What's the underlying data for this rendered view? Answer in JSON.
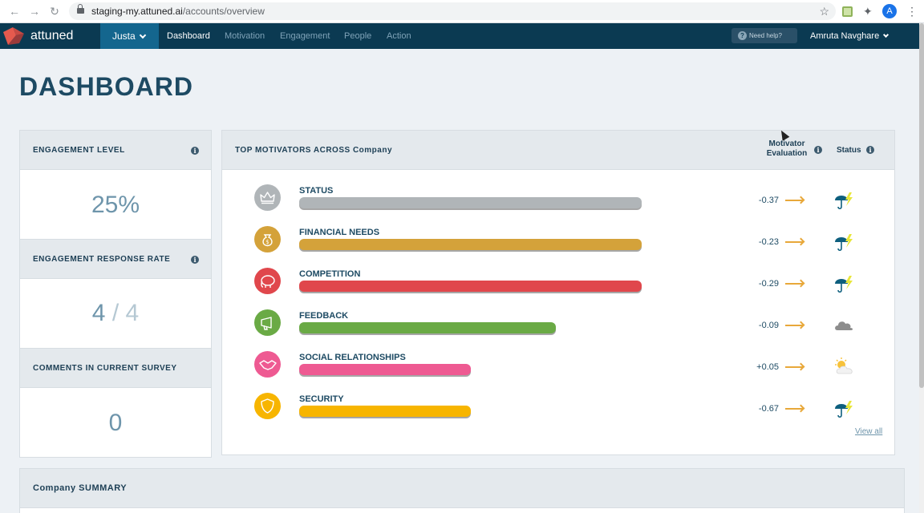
{
  "browser": {
    "url_host": "staging-my.attuned.ai",
    "url_path": "/accounts/overview",
    "avatar_letter": "A"
  },
  "nav": {
    "brand": "attuned",
    "account": "Justa",
    "links": [
      "Dashboard",
      "Motivation",
      "Engagement",
      "People",
      "Action"
    ],
    "active": "Dashboard",
    "help": "Need help?",
    "user": "Amruta Navghare"
  },
  "page": {
    "title": "DASHBOARD"
  },
  "cards": {
    "engagement_level": {
      "label": "ENGAGEMENT LEVEL",
      "value": "25%"
    },
    "response_rate": {
      "label": "ENGAGEMENT RESPONSE RATE",
      "responded": "4",
      "sep": "/",
      "total": "4"
    },
    "comments": {
      "label": "COMMENTS IN CURRENT SURVEY",
      "value": "0"
    }
  },
  "motivators": {
    "title": "TOP MOTIVATORS ACROSS Company",
    "eval_header_1": "Motivator",
    "eval_header_2": "Evaluation",
    "status_header": "Status",
    "view_all": "View all",
    "rows": [
      {
        "name": "STATUS",
        "score": "-0.37",
        "level": 1.0,
        "color": "#b0b5b8",
        "icon": "crown-icon",
        "status": "storm-icon"
      },
      {
        "name": "FINANCIAL NEEDS",
        "score": "-0.23",
        "level": 1.0,
        "color": "#d4a23a",
        "icon": "money-bag-icon",
        "status": "storm-icon"
      },
      {
        "name": "COMPETITION",
        "score": "-0.29",
        "level": 1.0,
        "color": "#e0474c",
        "icon": "elephant-icon",
        "status": "storm-icon"
      },
      {
        "name": "FEEDBACK",
        "score": "-0.09",
        "level": 0.75,
        "color": "#6aaa45",
        "icon": "megaphone-icon",
        "status": "cloud-icon"
      },
      {
        "name": "SOCIAL RELATIONSHIPS",
        "score": "+0.05",
        "level": 0.5,
        "color": "#ee5a92",
        "icon": "handshake-icon",
        "status": "partly-sunny-icon"
      },
      {
        "name": "SECURITY",
        "score": "-0.67",
        "level": 0.5,
        "color": "#f7b500",
        "icon": "shield-icon",
        "status": "storm-icon"
      }
    ]
  },
  "summary": {
    "title": "Company SUMMARY"
  }
}
